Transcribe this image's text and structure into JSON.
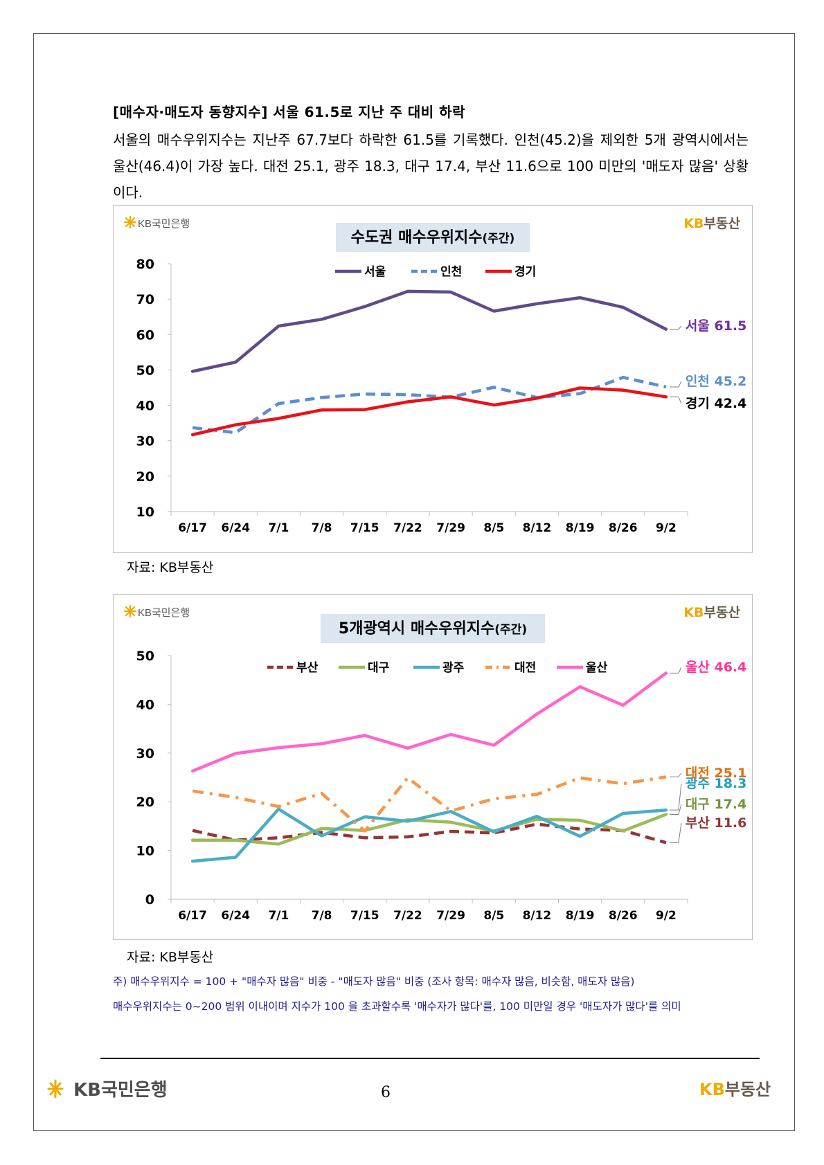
{
  "heading": "[매수자·매도자 동향지수] 서울 61.5로 지난 주 대비 하락",
  "paragraph": "서울의 매수우위지수는 지난주 67.7보다 하락한 61.5를 기록했다. 인천(45.2)을 제외한 5개 광역시에서는 울산(46.4)이 가장 높다. 대전 25.1, 광주 18.3, 대구 17.4, 부산 11.6으로 100 미만의 '매도자 많음' 상황이다.",
  "brand": {
    "bank": "KB국민은행",
    "kb": "KB",
    "realestate": "부동산"
  },
  "source_label": "자료: KB부동산",
  "notes": [
    "주) 매수우위지수 = 100 + \"매수자 많음\" 비중 - \"매도자 많음\" 비중   (조사 항목: 매수자 많음, 비슷함, 매도자 많음)",
    "매수우위지수는 0~200 범위 이내이며 지수가 100 을 초과할수록 '매수자가 많다'를, 100 미만일 경우 '매도자가 많다'를 의미"
  ],
  "page_number": "6",
  "chart_data": [
    {
      "type": "line",
      "title": "수도권 매수우위지수",
      "title_suffix": "(주간)",
      "categories": [
        "6/17",
        "6/24",
        "7/1",
        "7/8",
        "7/15",
        "7/22",
        "7/29",
        "8/5",
        "8/12",
        "8/19",
        "8/26",
        "9/2"
      ],
      "ylim": [
        10,
        80
      ],
      "yticks": [
        10,
        20,
        30,
        40,
        50,
        60,
        70,
        80
      ],
      "legend_position": "top",
      "series": [
        {
          "name": "서울",
          "color": "#5f4b8b",
          "dash": "solid",
          "values": [
            49.6,
            52.2,
            62.4,
            64.3,
            67.9,
            72.2,
            72.0,
            66.6,
            68.7,
            70.4,
            67.7,
            61.5
          ],
          "end_label": "서울 61.5",
          "label_color": "#7030a0"
        },
        {
          "name": "인천",
          "color": "#5b8fd0",
          "dash": "dash",
          "values": [
            33.7,
            32.3,
            40.5,
            42.2,
            43.2,
            43.0,
            42.3,
            45.1,
            42.2,
            43.3,
            47.9,
            45.2
          ],
          "end_label": "인천 45.2",
          "label_color": "#5b8fd0"
        },
        {
          "name": "경기",
          "color": "#e8121a",
          "dash": "solid",
          "values": [
            31.7,
            34.5,
            36.3,
            38.7,
            38.8,
            41.0,
            42.4,
            40.1,
            42.0,
            44.9,
            44.3,
            42.4
          ],
          "end_label": "경기 42.4",
          "label_color": "#000000"
        }
      ]
    },
    {
      "type": "line",
      "title": "5개광역시 매수우위지수",
      "title_suffix": "(주간)",
      "categories": [
        "6/17",
        "6/24",
        "7/1",
        "7/8",
        "7/15",
        "7/22",
        "7/29",
        "8/5",
        "8/12",
        "8/19",
        "8/26",
        "9/2"
      ],
      "ylim": [
        0,
        50
      ],
      "yticks": [
        0,
        10,
        20,
        30,
        40,
        50
      ],
      "legend_position": "top",
      "series": [
        {
          "name": "부산",
          "color": "#943634",
          "dash": "dash",
          "values": [
            14.1,
            12.1,
            12.6,
            13.7,
            12.6,
            12.8,
            13.9,
            13.6,
            15.4,
            14.4,
            14.1,
            11.6
          ],
          "end_label": "부산 11.6",
          "label_color": "#943634"
        },
        {
          "name": "대구",
          "color": "#9bbb59",
          "dash": "solid",
          "values": [
            12.1,
            12.1,
            11.3,
            14.5,
            14.1,
            16.3,
            15.8,
            14.0,
            16.4,
            16.2,
            14.0,
            17.4
          ],
          "end_label": "대구 17.4",
          "label_color": "#77933c"
        },
        {
          "name": "광주",
          "color": "#4bacc6",
          "dash": "solid",
          "values": [
            7.8,
            8.6,
            18.5,
            13.0,
            16.9,
            16.0,
            18.0,
            13.8,
            17.0,
            12.9,
            17.6,
            18.3
          ],
          "end_label": "광주 18.3",
          "label_color": "#1d9fc4"
        },
        {
          "name": "대전",
          "color": "#f79646",
          "dash": "dashdot",
          "values": [
            22.2,
            20.9,
            19.0,
            21.7,
            14.0,
            24.9,
            18.1,
            20.6,
            21.5,
            24.9,
            23.7,
            25.1
          ],
          "end_label": "대전 25.1",
          "label_color": "#e46c0a"
        },
        {
          "name": "울산",
          "color": "#ff66cc",
          "dash": "solid",
          "values": [
            26.3,
            29.9,
            31.1,
            31.9,
            33.6,
            31.0,
            33.8,
            31.6,
            38.0,
            43.6,
            39.8,
            46.4
          ],
          "end_label": "울산 46.4",
          "label_color": "#ff3399"
        }
      ]
    }
  ]
}
